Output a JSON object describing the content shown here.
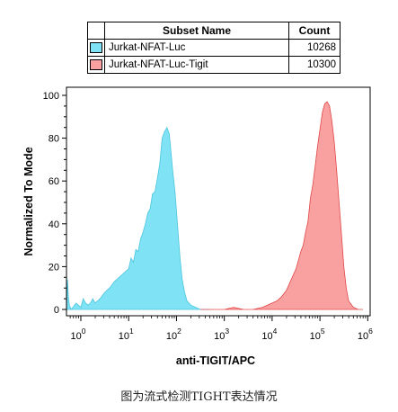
{
  "legend": {
    "header_name": "Subset Name",
    "header_count": "Count",
    "rows": [
      {
        "name": "Jurkat-NFAT-Luc",
        "count": "10268",
        "color": "#7fe3f5",
        "stroke": "#4cc4dc"
      },
      {
        "name": "Jurkat-NFAT-Luc-Tigit",
        "count": "10300",
        "color": "#f9a0a0",
        "stroke": "#e04848"
      }
    ]
  },
  "caption": "图为流式检测TIGHT表达情况",
  "chart_data": {
    "type": "area",
    "xlabel": "anti-TIGIT/APC",
    "ylabel": "Normalized To Mode",
    "xscale": "log",
    "xlim_log10": [
      -0.3,
      6.05
    ],
    "ylim": [
      0,
      100
    ],
    "x_ticks": [
      {
        "base": "10",
        "exp": "0",
        "value": 1
      },
      {
        "base": "10",
        "exp": "1",
        "value": 10
      },
      {
        "base": "10",
        "exp": "2",
        "value": 100
      },
      {
        "base": "10",
        "exp": "3",
        "value": 1000
      },
      {
        "base": "10",
        "exp": "4",
        "value": 10000
      },
      {
        "base": "10",
        "exp": "5",
        "value": 100000
      },
      {
        "base": "10",
        "exp": "6",
        "value": 1000000
      }
    ],
    "y_ticks": [
      "0",
      "20",
      "40",
      "60",
      "80",
      "100"
    ],
    "series": [
      {
        "name": "Jurkat-NFAT-Luc",
        "color": "#7fe3f5",
        "stroke": "#4cc4dc",
        "x_log10": [
          -0.3,
          -0.28,
          -0.26,
          -0.24,
          -0.22,
          -0.2,
          -0.1,
          0.0,
          0.05,
          0.1,
          0.15,
          0.2,
          0.25,
          0.3,
          0.4,
          0.5,
          0.6,
          0.7,
          0.8,
          0.9,
          1.0,
          1.05,
          1.1,
          1.15,
          1.2,
          1.25,
          1.3,
          1.35,
          1.4,
          1.45,
          1.5,
          1.55,
          1.6,
          1.65,
          1.7,
          1.75,
          1.8,
          1.85,
          1.88,
          1.92,
          1.97,
          2.02,
          2.07,
          2.12,
          2.17,
          2.22,
          2.3,
          2.4,
          2.5,
          2.7
        ],
        "y": [
          0,
          14,
          6,
          2,
          1,
          0,
          3,
          1,
          5,
          3,
          2,
          3,
          5,
          3,
          5,
          8,
          10,
          13,
          15,
          17,
          19,
          24,
          22,
          28,
          27,
          33,
          36,
          40,
          45,
          47,
          54,
          55,
          61,
          68,
          80,
          83,
          85,
          82,
          75,
          65,
          55,
          40,
          25,
          14,
          8,
          4,
          2,
          1,
          0,
          0
        ]
      },
      {
        "name": "Jurkat-NFAT-Luc-Tigit",
        "color": "#f9a0a0",
        "stroke": "#e04848",
        "x_log10": [
          2.5,
          2.8,
          3.0,
          3.2,
          3.4,
          3.6,
          3.8,
          3.9,
          4.0,
          4.1,
          4.2,
          4.3,
          4.4,
          4.5,
          4.6,
          4.65,
          4.7,
          4.75,
          4.8,
          4.85,
          4.9,
          4.95,
          5.0,
          5.05,
          5.1,
          5.15,
          5.2,
          5.25,
          5.3,
          5.35,
          5.4,
          5.45,
          5.5,
          5.55,
          5.6,
          5.7,
          5.8,
          5.9
        ],
        "y": [
          0,
          0,
          0,
          1,
          0,
          0,
          1,
          2,
          3,
          4,
          6,
          9,
          14,
          19,
          27,
          30,
          36,
          41,
          52,
          58,
          67,
          76,
          84,
          92,
          96,
          97,
          95,
          88,
          78,
          65,
          50,
          35,
          20,
          10,
          4,
          1,
          0,
          0
        ]
      }
    ]
  }
}
